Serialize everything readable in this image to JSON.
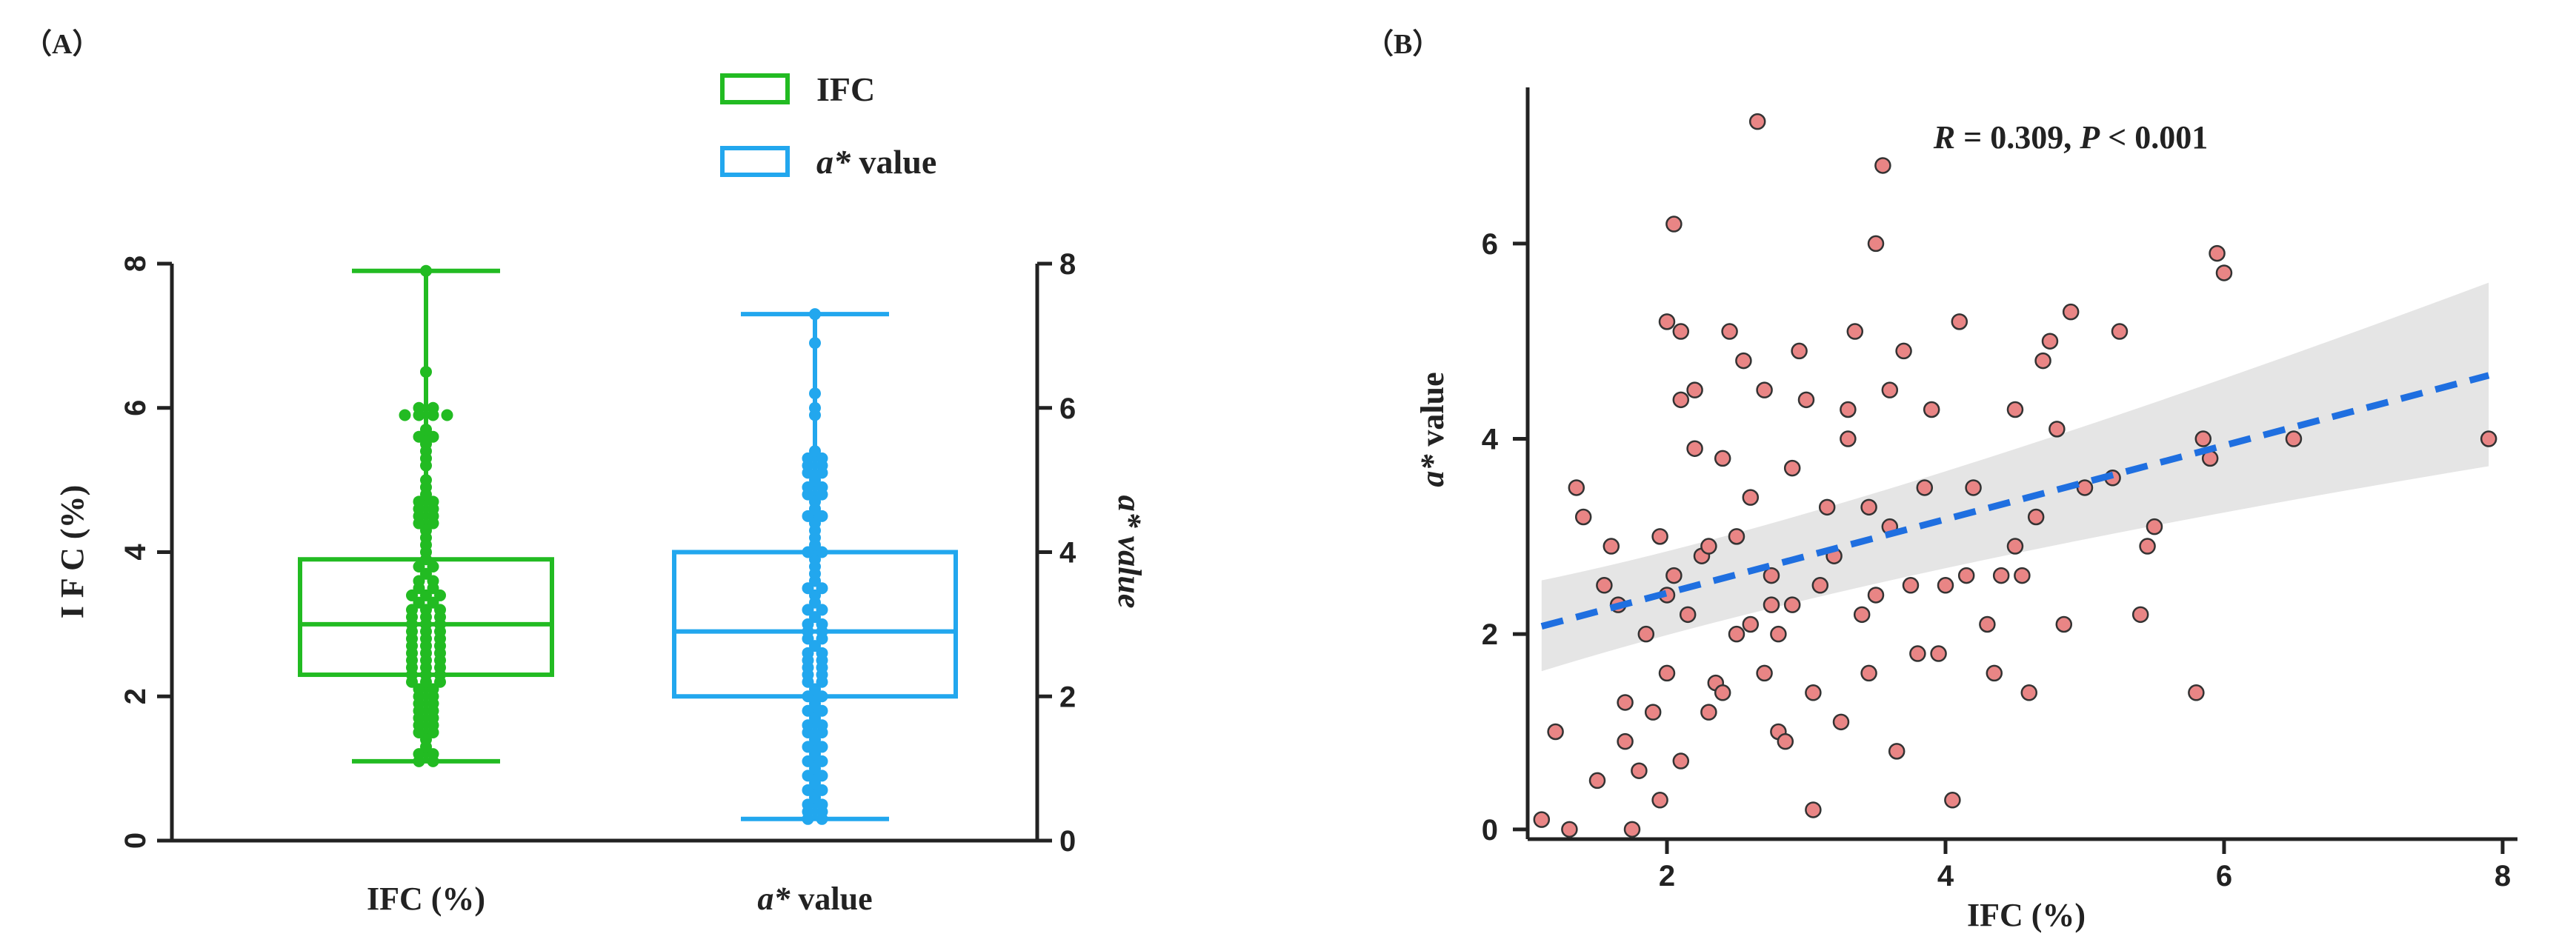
{
  "chart_data": [
    {
      "panel_label": "（A）",
      "type": "box-swarm",
      "left_axis": {
        "label": "I F C  (%)",
        "ylim": [
          0,
          8
        ],
        "ticks": [
          "0",
          "2",
          "4",
          "6",
          "8"
        ]
      },
      "right_axis": {
        "label": "a* value",
        "ylim": [
          0,
          8
        ],
        "ticks": [
          "0",
          "2",
          "4",
          "6",
          "8"
        ]
      },
      "legend": {
        "placement": "top-center",
        "entries": [
          {
            "name": "IFC",
            "name_italic": "",
            "name_rest": "IFC",
            "color": "#22bb22"
          },
          {
            "name": "a* value",
            "name_italic": "a*",
            "name_rest": " value",
            "color": "#22a7ee"
          }
        ]
      },
      "series": [
        {
          "name": "IFC",
          "x_label": "IFC (%)",
          "x_label_italic": "",
          "x_label_rest": "IFC (%)",
          "color": "#22bb22",
          "min": 1.1,
          "q1": 2.3,
          "median": 3.0,
          "q3": 3.9,
          "max": 7.9,
          "values": [
            7.9,
            6.5,
            6.0,
            6.0,
            5.9,
            5.9,
            5.9,
            5.9,
            5.7,
            5.6,
            5.6,
            5.5,
            5.4,
            5.3,
            5.2,
            5.0,
            4.9,
            4.8,
            4.7,
            4.7,
            4.6,
            4.6,
            4.5,
            4.5,
            4.4,
            4.4,
            4.3,
            4.2,
            4.1,
            4.0,
            3.9,
            3.8,
            3.8,
            3.7,
            3.6,
            3.6,
            3.5,
            3.5,
            3.4,
            3.4,
            3.4,
            3.3,
            3.3,
            3.2,
            3.2,
            3.2,
            3.1,
            3.1,
            3.1,
            3.0,
            3.0,
            3.0,
            2.9,
            2.9,
            2.9,
            2.8,
            2.8,
            2.8,
            2.7,
            2.7,
            2.7,
            2.6,
            2.6,
            2.6,
            2.5,
            2.5,
            2.5,
            2.4,
            2.4,
            2.4,
            2.3,
            2.3,
            2.3,
            2.2,
            2.2,
            2.2,
            2.1,
            2.1,
            2.0,
            2.0,
            1.9,
            1.9,
            1.8,
            1.8,
            1.7,
            1.7,
            1.6,
            1.6,
            1.5,
            1.5,
            1.4,
            1.3,
            1.2,
            1.2,
            1.1,
            1.1
          ]
        },
        {
          "name": "a* value",
          "x_label": "a* value",
          "x_label_italic": "a*",
          "x_label_rest": " value",
          "color": "#22a7ee",
          "min": 0.3,
          "q1": 2.0,
          "median": 2.9,
          "q3": 4.0,
          "max": 7.3,
          "values": [
            7.3,
            6.9,
            6.2,
            6.0,
            5.9,
            5.4,
            5.3,
            5.3,
            5.2,
            5.2,
            5.1,
            5.1,
            5.0,
            4.9,
            4.9,
            4.8,
            4.8,
            4.7,
            4.6,
            4.5,
            4.5,
            4.4,
            4.3,
            4.2,
            4.1,
            4.0,
            4.0,
            3.9,
            3.8,
            3.7,
            3.6,
            3.5,
            3.5,
            3.4,
            3.3,
            3.2,
            3.2,
            3.1,
            3.0,
            3.0,
            2.9,
            2.9,
            2.8,
            2.8,
            2.7,
            2.6,
            2.6,
            2.5,
            2.5,
            2.4,
            2.4,
            2.3,
            2.3,
            2.2,
            2.2,
            2.1,
            2.0,
            2.0,
            1.9,
            1.8,
            1.8,
            1.7,
            1.6,
            1.6,
            1.5,
            1.5,
            1.4,
            1.3,
            1.3,
            1.2,
            1.1,
            1.1,
            1.0,
            0.9,
            0.9,
            0.8,
            0.7,
            0.7,
            0.6,
            0.5,
            0.5,
            0.4,
            0.4,
            0.3,
            0.3
          ]
        }
      ]
    },
    {
      "panel_label": "（B）",
      "type": "scatter",
      "xlabel": "IFC (%)",
      "ylabel": "a* value",
      "ylabel_italic": "a*",
      "ylabel_rest": " value",
      "xlim": [
        1.0,
        8.0
      ],
      "ylim": [
        -0.1,
        7.6
      ],
      "xticks": [
        "2",
        "4",
        "6",
        "8"
      ],
      "yticks": [
        "0",
        "2",
        "4",
        "6"
      ],
      "grid": false,
      "annotation": {
        "r_symbol": "R",
        "r_text": " = 0.309, ",
        "p_symbol": "P",
        "p_text": " < 0.001"
      },
      "fit": {
        "style": "dashed",
        "color": "#1f6fe0",
        "x": [
          1.1,
          7.9
        ],
        "y": [
          2.08,
          4.65
        ],
        "ci_lower": [
          1.62,
          3.72
        ],
        "ci_upper": [
          2.55,
          5.6
        ],
        "ci_mid_x": 3.5,
        "ci_mid_lower": [
          2.68
        ],
        "ci_mid_upper": [
          3.26
        ]
      },
      "point_color": "#e98585",
      "points": [
        [
          1.1,
          0.1
        ],
        [
          1.2,
          1.0
        ],
        [
          1.3,
          0.0
        ],
        [
          1.35,
          3.5
        ],
        [
          1.4,
          3.2
        ],
        [
          1.5,
          0.5
        ],
        [
          1.55,
          2.5
        ],
        [
          1.6,
          2.9
        ],
        [
          1.65,
          2.3
        ],
        [
          1.7,
          1.3
        ],
        [
          1.7,
          0.9
        ],
        [
          1.75,
          0.0
        ],
        [
          1.8,
          0.6
        ],
        [
          1.85,
          2.0
        ],
        [
          1.9,
          1.2
        ],
        [
          1.95,
          0.3
        ],
        [
          1.95,
          3.0
        ],
        [
          2.0,
          1.6
        ],
        [
          2.0,
          2.4
        ],
        [
          2.0,
          5.2
        ],
        [
          2.05,
          2.6
        ],
        [
          2.05,
          6.2
        ],
        [
          2.1,
          4.4
        ],
        [
          2.1,
          5.1
        ],
        [
          2.1,
          0.7
        ],
        [
          2.15,
          2.2
        ],
        [
          2.2,
          4.5
        ],
        [
          2.2,
          3.9
        ],
        [
          2.25,
          2.8
        ],
        [
          2.3,
          1.2
        ],
        [
          2.3,
          2.9
        ],
        [
          2.35,
          1.5
        ],
        [
          2.4,
          1.4
        ],
        [
          2.4,
          3.8
        ],
        [
          2.45,
          5.1
        ],
        [
          2.5,
          2.0
        ],
        [
          2.5,
          3.0
        ],
        [
          2.55,
          4.8
        ],
        [
          2.6,
          3.4
        ],
        [
          2.6,
          2.1
        ],
        [
          2.65,
          7.25
        ],
        [
          2.7,
          1.6
        ],
        [
          2.7,
          4.5
        ],
        [
          2.75,
          2.6
        ],
        [
          2.75,
          2.3
        ],
        [
          2.8,
          2.0
        ],
        [
          2.8,
          1.0
        ],
        [
          2.85,
          0.9
        ],
        [
          2.9,
          2.3
        ],
        [
          2.9,
          3.7
        ],
        [
          2.95,
          4.9
        ],
        [
          3.0,
          4.4
        ],
        [
          3.05,
          0.2
        ],
        [
          3.05,
          1.4
        ],
        [
          3.1,
          2.5
        ],
        [
          3.15,
          3.3
        ],
        [
          3.2,
          2.8
        ],
        [
          3.25,
          1.1
        ],
        [
          3.3,
          4.3
        ],
        [
          3.3,
          4.0
        ],
        [
          3.35,
          5.1
        ],
        [
          3.4,
          2.2
        ],
        [
          3.45,
          1.6
        ],
        [
          3.45,
          3.3
        ],
        [
          3.5,
          6.0
        ],
        [
          3.5,
          2.4
        ],
        [
          3.55,
          6.8
        ],
        [
          3.6,
          3.1
        ],
        [
          3.6,
          4.5
        ],
        [
          3.65,
          0.8
        ],
        [
          3.7,
          4.9
        ],
        [
          3.75,
          2.5
        ],
        [
          3.8,
          1.8
        ],
        [
          3.85,
          3.5
        ],
        [
          3.9,
          4.3
        ],
        [
          3.95,
          1.8
        ],
        [
          4.0,
          2.5
        ],
        [
          4.05,
          0.3
        ],
        [
          4.1,
          5.2
        ],
        [
          4.15,
          2.6
        ],
        [
          4.2,
          3.5
        ],
        [
          4.3,
          2.1
        ],
        [
          4.35,
          1.6
        ],
        [
          4.4,
          2.6
        ],
        [
          4.5,
          2.9
        ],
        [
          4.5,
          4.3
        ],
        [
          4.55,
          2.6
        ],
        [
          4.6,
          1.4
        ],
        [
          4.65,
          3.2
        ],
        [
          4.7,
          4.8
        ],
        [
          4.75,
          5.0
        ],
        [
          4.8,
          4.1
        ],
        [
          4.85,
          2.1
        ],
        [
          4.9,
          5.3
        ],
        [
          5.0,
          3.5
        ],
        [
          5.2,
          3.6
        ],
        [
          5.25,
          5.1
        ],
        [
          5.4,
          2.2
        ],
        [
          5.45,
          2.9
        ],
        [
          5.5,
          3.1
        ],
        [
          5.8,
          1.4
        ],
        [
          5.85,
          4.0
        ],
        [
          5.9,
          3.8
        ],
        [
          5.95,
          5.9
        ],
        [
          6.0,
          5.7
        ],
        [
          6.5,
          4.0
        ],
        [
          7.9,
          4.0
        ]
      ]
    }
  ]
}
